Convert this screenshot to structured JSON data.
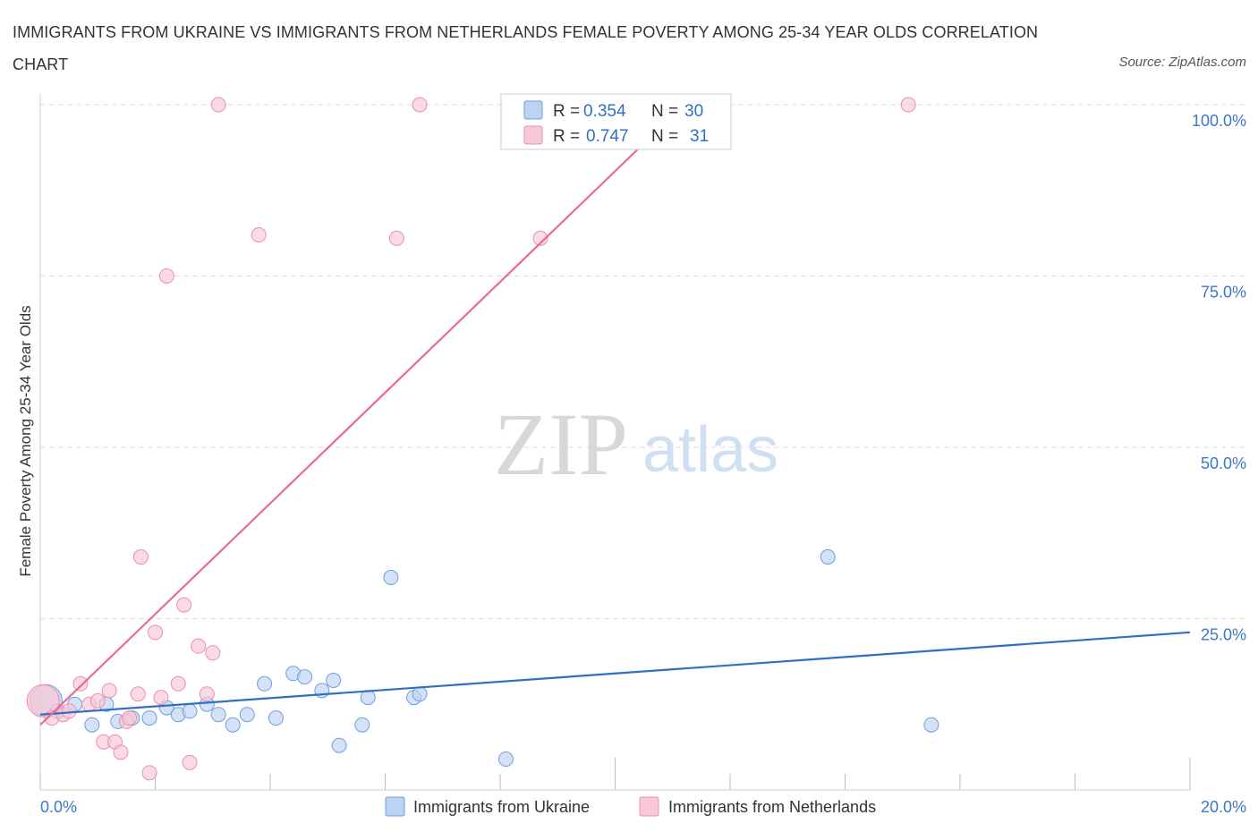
{
  "title": "IMMIGRANTS FROM UKRAINE VS IMMIGRANTS FROM NETHERLANDS FEMALE POVERTY AMONG 25-34 YEAR OLDS CORRELATION CHART",
  "source": "Source: ZipAtlas.com",
  "watermark": {
    "zip": "ZIP",
    "atlas": "atlas"
  },
  "colors": {
    "ukraine_fill": "#bcd3f3",
    "ukraine_stroke": "#6f9fdc",
    "ukraine_line": "#2f6fc4",
    "netherlands_fill": "#f8c8d6",
    "netherlands_stroke": "#ea8fae",
    "netherlands_line": "#e86b93"
  },
  "legend": {
    "rows": [
      {
        "r_label": "R = ",
        "r_value": "0.354",
        "n_label": "N = ",
        "n_value": "30"
      },
      {
        "r_label": "R = ",
        "r_value": "0.747",
        "n_label": "N = ",
        "n_value": "31"
      }
    ]
  },
  "chart_data": {
    "type": "scatter",
    "title": "IMMIGRANTS FROM UKRAINE VS IMMIGRANTS FROM NETHERLANDS FEMALE POVERTY AMONG 25-34 YEAR OLDS CORRELATION CHART",
    "xlabel": "",
    "ylabel": "Female Poverty Among 25-34 Year Olds",
    "xlim": [
      0,
      20
    ],
    "ylim": [
      0,
      100
    ],
    "x_tick_labels": [
      "0.0%",
      "20.0%"
    ],
    "y_tick_values": [
      25,
      50,
      75,
      100
    ],
    "y_tick_labels": [
      "25.0%",
      "50.0%",
      "75.0%",
      "100.0%"
    ],
    "series": [
      {
        "name": "Immigrants from Ukraine",
        "R": 0.354,
        "N": 30,
        "trend": {
          "x": [
            0,
            20
          ],
          "y": [
            11.0,
            23.0
          ]
        },
        "points": [
          {
            "x": 0.1,
            "y": 13.0,
            "big": true
          },
          {
            "x": 0.3,
            "y": 11.5
          },
          {
            "x": 0.6,
            "y": 12.5
          },
          {
            "x": 0.9,
            "y": 9.5
          },
          {
            "x": 1.15,
            "y": 12.5
          },
          {
            "x": 1.35,
            "y": 10.0
          },
          {
            "x": 1.6,
            "y": 10.5
          },
          {
            "x": 1.9,
            "y": 10.5
          },
          {
            "x": 2.2,
            "y": 12.0
          },
          {
            "x": 2.4,
            "y": 11.0
          },
          {
            "x": 2.6,
            "y": 11.5
          },
          {
            "x": 2.9,
            "y": 12.5
          },
          {
            "x": 3.1,
            "y": 11.0
          },
          {
            "x": 3.35,
            "y": 9.5
          },
          {
            "x": 3.6,
            "y": 11.0
          },
          {
            "x": 3.9,
            "y": 15.5
          },
          {
            "x": 4.1,
            "y": 10.5
          },
          {
            "x": 4.4,
            "y": 17.0
          },
          {
            "x": 4.6,
            "y": 16.5
          },
          {
            "x": 4.9,
            "y": 14.5
          },
          {
            "x": 5.1,
            "y": 16.0
          },
          {
            "x": 5.2,
            "y": 6.5
          },
          {
            "x": 5.7,
            "y": 13.5
          },
          {
            "x": 5.6,
            "y": 9.5
          },
          {
            "x": 6.1,
            "y": 31.0
          },
          {
            "x": 6.5,
            "y": 13.5
          },
          {
            "x": 6.6,
            "y": 14.0
          },
          {
            "x": 8.1,
            "y": 4.5
          },
          {
            "x": 13.7,
            "y": 34.0
          },
          {
            "x": 15.5,
            "y": 9.5
          }
        ]
      },
      {
        "name": "Immigrants from Netherlands",
        "R": 0.747,
        "N": 31,
        "trend": {
          "x": [
            0,
            11.2
          ],
          "y": [
            9.5,
            100.0
          ]
        },
        "points": [
          {
            "x": 0.05,
            "y": 13.0,
            "big": true
          },
          {
            "x": 0.2,
            "y": 10.5
          },
          {
            "x": 0.4,
            "y": 11.0
          },
          {
            "x": 0.7,
            "y": 15.5
          },
          {
            "x": 0.85,
            "y": 12.5
          },
          {
            "x": 1.0,
            "y": 13.0
          },
          {
            "x": 1.1,
            "y": 7.0
          },
          {
            "x": 1.2,
            "y": 14.5
          },
          {
            "x": 1.3,
            "y": 7.0
          },
          {
            "x": 1.4,
            "y": 5.5
          },
          {
            "x": 1.5,
            "y": 10.0
          },
          {
            "x": 1.7,
            "y": 14.0
          },
          {
            "x": 1.75,
            "y": 34.0
          },
          {
            "x": 1.9,
            "y": 2.5
          },
          {
            "x": 2.0,
            "y": 23.0
          },
          {
            "x": 2.1,
            "y": 13.5
          },
          {
            "x": 2.2,
            "y": 75.0
          },
          {
            "x": 2.4,
            "y": 15.5
          },
          {
            "x": 2.5,
            "y": 27.0
          },
          {
            "x": 2.6,
            "y": 4.0
          },
          {
            "x": 2.75,
            "y": 21.0
          },
          {
            "x": 2.9,
            "y": 14.0
          },
          {
            "x": 3.0,
            "y": 20.0
          },
          {
            "x": 3.1,
            "y": 100.0
          },
          {
            "x": 3.8,
            "y": 81.0
          },
          {
            "x": 6.2,
            "y": 80.5
          },
          {
            "x": 6.6,
            "y": 100.0
          },
          {
            "x": 8.7,
            "y": 80.5
          },
          {
            "x": 15.1,
            "y": 100.0
          },
          {
            "x": 0.5,
            "y": 11.5
          },
          {
            "x": 1.55,
            "y": 10.5
          }
        ]
      }
    ]
  }
}
